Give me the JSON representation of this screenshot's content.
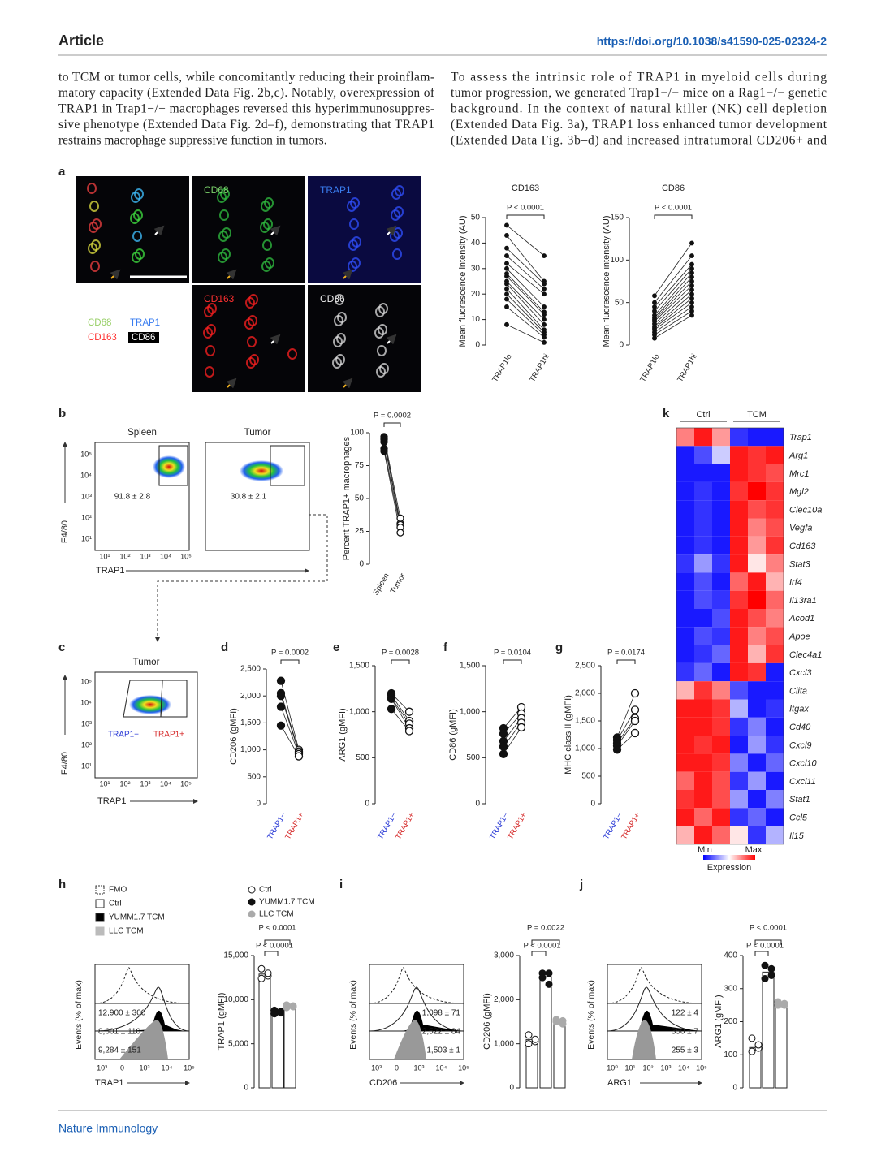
{
  "header": {
    "article": "Article",
    "doi": "https://doi.org/10.1038/s41590-025-02324-2"
  },
  "body": {
    "left": [
      "to TCM or tumor cells, while concomitantly reducing their proinflam-",
      "matory capacity (Extended Data Fig. 2b,c). Notably, overexpression of",
      "TRAP1 in Trap1−/− macrophages reversed this hyperimmunosuppres-",
      "sive phenotype (Extended Data Fig. 2d–f), demonstrating that TRAP1",
      "restrains macrophage suppressive function in tumors."
    ],
    "right": [
      "To assess the intrinsic role of TRAP1 in myeloid cells during",
      "tumor progression, we generated Trap1−/− mice on a Rag1−/− genetic",
      "background. In the context of natural killer (NK) cell depletion",
      "(Extended Data Fig. 3a), TRAP1 loss enhanced tumor development",
      "(Extended Data Fig. 3b–d) and increased intratumoral CD206+ and"
    ]
  },
  "footer": "Nature Immunology",
  "panel_a": {
    "label": "a",
    "images": [
      "CD68",
      "TRAP1",
      "CD163",
      "CD86"
    ],
    "legend": [
      "CD68",
      "TRAP1",
      "CD163",
      "CD86"
    ],
    "plots": [
      {
        "title": "CD163",
        "p": "P < 0.0001",
        "ylabel": "Mean fluorescence intensity (AU)",
        "ylim": [
          0,
          50
        ],
        "yticks": [
          0,
          10,
          20,
          30,
          40,
          50
        ],
        "categories": [
          "TRAP1lo",
          "TRAP1hi"
        ],
        "groups": [
          {
            "marker": "filled",
            "values": [
              47,
              43,
              38,
              35,
              32,
              30,
              28,
              27,
              25,
              24,
              22,
              20,
              18,
              15,
              8
            ]
          },
          {
            "marker": "filled",
            "values": [
              35,
              25,
              24,
              22,
              20,
              15,
              13,
              12,
              10,
              8,
              6,
              5,
              4,
              3,
              1
            ]
          }
        ]
      },
      {
        "title": "CD86",
        "p": "P < 0.0001",
        "ylabel": "Mean fluorescence intensity (AU)",
        "ylim": [
          0,
          150
        ],
        "yticks": [
          0,
          50,
          100,
          150
        ],
        "categories": [
          "TRAP1lo",
          "TRAP1hi"
        ],
        "groups": [
          {
            "marker": "filled",
            "values": [
              58,
              50,
              45,
              40,
              35,
              32,
              30,
              28,
              25,
              22,
              20,
              18,
              15,
              12,
              8
            ]
          },
          {
            "marker": "filled",
            "values": [
              120,
              105,
              95,
              90,
              85,
              80,
              75,
              70,
              65,
              60,
              55,
              50,
              45,
              40,
              35
            ]
          }
        ]
      }
    ]
  },
  "panel_b": {
    "label": "b",
    "flow": [
      {
        "title": "Spleen",
        "gate": "91.8 ± 2.8"
      },
      {
        "title": "Tumor",
        "gate": "30.8 ± 2.1"
      }
    ],
    "yaxis": "F4/80",
    "xaxis": "TRAP1",
    "log_ticks": [
      "10¹",
      "10²",
      "10³",
      "10⁴",
      "10⁵"
    ],
    "plot": {
      "p": "P = 0.0002",
      "ylabel": "Percent TRAP1+ macrophages",
      "ylim": [
        0,
        100
      ],
      "yticks": [
        0,
        25,
        50,
        75,
        100
      ],
      "categories": [
        "Spleen",
        "Tumor"
      ],
      "groups": [
        {
          "marker": "filled",
          "values": [
            97,
            95,
            93,
            88,
            86
          ]
        },
        {
          "marker": "open",
          "values": [
            35,
            31,
            30,
            28,
            24
          ]
        }
      ]
    }
  },
  "panel_c": {
    "label": "c",
    "title": "Tumor",
    "gates": [
      "TRAP1−",
      "TRAP1+"
    ],
    "yaxis": "F4/80",
    "xaxis": "TRAP1",
    "log_ticks": [
      "10¹",
      "10²",
      "10³",
      "10⁴",
      "10⁵"
    ]
  },
  "panels_dg": [
    {
      "label": "d",
      "p": "P = 0.0002",
      "ylabel": "CD206 (gMFI)",
      "ylim": [
        0,
        2500
      ],
      "yticks": [
        0,
        500,
        {
          "value": 1000,
          "label": "1,000"
        },
        {
          "value": 1500,
          "label": "1,500"
        },
        {
          "value": 2000,
          "label": "2,000"
        },
        {
          "value": 2500,
          "label": "2,500"
        }
      ],
      "categories": [
        "TRAP1−",
        "TRAP1+"
      ],
      "category_colors": [
        "#2b3bd6",
        "#d62b2b"
      ],
      "groups": [
        {
          "marker": "filled",
          "values": [
            2280,
            2050,
            2000,
            1800,
            1450
          ]
        },
        {
          "marker": "open",
          "values": [
            1000,
            970,
            950,
            920,
            880
          ]
        }
      ]
    },
    {
      "label": "e",
      "p": "P = 0.0028",
      "ylabel": "ARG1 (gMFI)",
      "ylim": [
        0,
        1500
      ],
      "yticks": [
        0,
        500,
        {
          "value": 1000,
          "label": "1,000"
        },
        {
          "value": 1500,
          "label": "1,500"
        }
      ],
      "categories": [
        "TRAP1−",
        "TRAP1+"
      ],
      "category_colors": [
        "#2b3bd6",
        "#d62b2b"
      ],
      "groups": [
        {
          "marker": "filled",
          "values": [
            1200,
            1180,
            1150,
            1140,
            1030
          ]
        },
        {
          "marker": "open",
          "values": [
            1000,
            900,
            870,
            820,
            790
          ]
        }
      ]
    },
    {
      "label": "f",
      "p": "P = 0.0104",
      "ylabel": "CD86 (gMFI)",
      "ylim": [
        0,
        1500
      ],
      "yticks": [
        0,
        500,
        {
          "value": 1000,
          "label": "1,000"
        },
        {
          "value": 1500,
          "label": "1,500"
        }
      ],
      "categories": [
        "TRAP1−",
        "TRAP1+"
      ],
      "category_colors": [
        "#2b3bd6",
        "#d62b2b"
      ],
      "groups": [
        {
          "marker": "filled",
          "values": [
            820,
            760,
            680,
            620,
            540
          ]
        },
        {
          "marker": "open",
          "values": [
            1050,
            980,
            930,
            880,
            830
          ]
        }
      ]
    },
    {
      "label": "g",
      "p": "P = 0.0174",
      "ylabel": "MHC class II (gMFI)",
      "ylim": [
        0,
        2500
      ],
      "yticks": [
        0,
        500,
        {
          "value": 1000,
          "label": "1,000"
        },
        {
          "value": 1500,
          "label": "1,500"
        },
        {
          "value": 2000,
          "label": "2,000"
        },
        {
          "value": 2500,
          "label": "2,500"
        }
      ],
      "categories": [
        "TRAP1−",
        "TRAP1+"
      ],
      "category_colors": [
        "#2b3bd6",
        "#d62b2b"
      ],
      "groups": [
        {
          "marker": "filled",
          "values": [
            1200,
            1150,
            1100,
            1050,
            980
          ]
        },
        {
          "marker": "open",
          "values": [
            2000,
            1700,
            1550,
            1500,
            1280
          ]
        }
      ]
    }
  ],
  "panels_hj": [
    {
      "label": "h",
      "hist_legend": [
        "FMO",
        "Ctrl",
        "YUMM1.7 TCM",
        "LLC TCM"
      ],
      "hist_labels": [
        "12,900 ± 300",
        "8,601 ± 110",
        "9,284 ± 151"
      ],
      "hist_y": "Events (% of max)",
      "hist_x": "TRAP1",
      "hist_ticks": [
        "−10³",
        "0",
        "10³",
        "10⁴",
        "10⁵"
      ],
      "bar_legend": [
        "Ctrl",
        "YUMM1.7 TCM",
        "LLC TCM"
      ],
      "p": [
        "P < 0.0001",
        "P < 0.0001"
      ],
      "ylabel": "TRAP1 (gMFI)",
      "ylim": [
        0,
        15000
      ],
      "yticks": [
        0,
        {
          "value": 5000,
          "label": "5,000"
        },
        {
          "value": 10000,
          "label": "10,000"
        },
        {
          "value": 15000,
          "label": "15,000"
        }
      ],
      "values": [
        12900,
        8601,
        9284
      ],
      "points": [
        [
          13500,
          12700,
          12400,
          13000
        ],
        [
          8800,
          8500,
          8400,
          8700
        ],
        [
          9400,
          9200,
          9100,
          9300
        ]
      ]
    },
    {
      "label": "i",
      "hist_labels": [
        "1,098 ± 71",
        "2,522 ± 84",
        "1,503 ± 1"
      ],
      "hist_y": "Events (% of max)",
      "hist_x": "CD206",
      "hist_ticks": [
        "−10³",
        "0",
        "10³",
        "10⁴",
        "10⁵"
      ],
      "p": [
        "P = 0.0022",
        "P < 0.0001"
      ],
      "ylabel": "CD206 (gMFI)",
      "ylim": [
        0,
        3000
      ],
      "yticks": [
        0,
        {
          "value": 1000,
          "label": "1,000"
        },
        {
          "value": 2000,
          "label": "2,000"
        },
        {
          "value": 3000,
          "label": "3,000"
        }
      ],
      "values": [
        1098,
        2522,
        1503
      ],
      "points": [
        [
          1200,
          1050,
          1000,
          1100
        ],
        [
          2600,
          2350,
          2500,
          2600
        ],
        [
          1550,
          1450,
          1500,
          1520
        ]
      ]
    },
    {
      "label": "j",
      "hist_labels": [
        "122 ± 4",
        "350 ± 7",
        "255 ± 3"
      ],
      "hist_y": "Events (% of max)",
      "hist_x": "ARG1",
      "hist_ticks": [
        "10⁰",
        "10¹",
        "10²",
        "10³",
        "10⁴",
        "10⁵"
      ],
      "p": [
        "P < 0.0001",
        "P < 0.0001"
      ],
      "ylabel": "ARG1 (gMFI)",
      "ylim": [
        0,
        400
      ],
      "yticks": [
        0,
        100,
        200,
        300,
        400
      ],
      "values": [
        122,
        350,
        255
      ],
      "points": [
        [
          150,
          120,
          110,
          130
        ],
        [
          370,
          340,
          330,
          360
        ],
        [
          250,
          255,
          260,
          250
        ]
      ]
    }
  ],
  "panel_k": {
    "label": "k",
    "groups": [
      "Ctrl",
      "TCM"
    ],
    "legend": {
      "min": "Min",
      "max": "Max",
      "title": "Expression"
    },
    "genes": [
      "Trap1",
      "Arg1",
      "Mrc1",
      "Mgl2",
      "Clec10a",
      "Vegfa",
      "Cd163",
      "Stat3",
      "Irf4",
      "Il13ra1",
      "Acod1",
      "Apoe",
      "Clec4a1",
      "Cxcl3",
      "Ciita",
      "Itgax",
      "Cd40",
      "Cxcl9",
      "Cxcl10",
      "Cxcl11",
      "Stat1",
      "Ccl5",
      "Il15"
    ],
    "matrix": [
      [
        0.5,
        0.9,
        0.4,
        -0.8,
        -0.9,
        -0.9
      ],
      [
        -0.9,
        -0.7,
        -0.2,
        0.9,
        0.8,
        0.9
      ],
      [
        -0.9,
        -0.9,
        -0.9,
        0.9,
        0.8,
        0.7
      ],
      [
        -0.9,
        -0.8,
        -0.9,
        0.8,
        1,
        0.8
      ],
      [
        -0.9,
        -0.8,
        -0.9,
        0.9,
        0.7,
        0.8
      ],
      [
        -0.9,
        -0.8,
        -0.9,
        0.9,
        0.5,
        0.7
      ],
      [
        -0.9,
        -0.8,
        -0.9,
        0.9,
        0.4,
        0.8
      ],
      [
        -0.8,
        -0.4,
        -0.8,
        0.9,
        0.1,
        0.5
      ],
      [
        -0.9,
        -0.7,
        -0.9,
        0.6,
        0.9,
        0.3
      ],
      [
        -0.9,
        -0.7,
        -0.8,
        0.8,
        1,
        0.6
      ],
      [
        -0.9,
        -0.9,
        -0.7,
        0.9,
        0.7,
        0.5
      ],
      [
        -0.9,
        -0.7,
        -0.8,
        0.9,
        0.5,
        0.7
      ],
      [
        -0.9,
        -0.8,
        -0.6,
        0.9,
        0.3,
        0.8
      ],
      [
        -0.8,
        -0.6,
        -0.9,
        0.9,
        0.8,
        -0.9
      ],
      [
        0.3,
        0.8,
        0.5,
        -0.7,
        -0.9,
        -0.9
      ],
      [
        0.9,
        0.9,
        0.8,
        -0.3,
        -0.9,
        -0.8
      ],
      [
        0.9,
        0.9,
        0.8,
        -0.8,
        -0.5,
        -0.9
      ],
      [
        0.9,
        0.8,
        0.9,
        -0.9,
        -0.4,
        -0.8
      ],
      [
        0.9,
        0.9,
        0.8,
        -0.5,
        -0.9,
        -0.6
      ],
      [
        0.6,
        0.9,
        0.7,
        -0.8,
        -0.4,
        -0.9
      ],
      [
        0.8,
        0.9,
        0.7,
        -0.4,
        -0.9,
        -0.5
      ],
      [
        0.9,
        0.6,
        0.9,
        -0.8,
        -0.6,
        -0.9
      ],
      [
        0.3,
        0.9,
        0.6,
        0.1,
        -0.8,
        -0.3
      ]
    ]
  }
}
